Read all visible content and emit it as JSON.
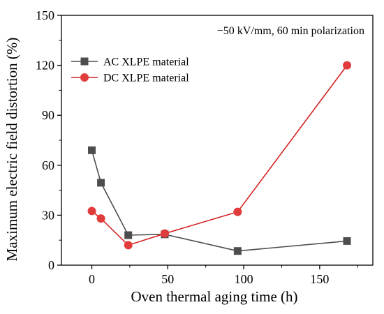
{
  "chart_data": {
    "type": "line",
    "title": "",
    "annotation": "−50 kV/mm, 60 min polarization",
    "xlabel": "Oven thermal aging time (h)",
    "ylabel": "Maximum electric field distortion (%)",
    "xlim": [
      -20,
      185
    ],
    "ylim": [
      0,
      150
    ],
    "xticks": [
      0,
      50,
      100,
      150
    ],
    "yticks": [
      0,
      30,
      60,
      90,
      120,
      150
    ],
    "grid": false,
    "legend_position": "top-left",
    "series": [
      {
        "name": "AC XLPE material",
        "color": "#4d4d4d",
        "marker": "square",
        "x": [
          0,
          6,
          24,
          48,
          96,
          168
        ],
        "y": [
          69,
          49.5,
          18,
          18.5,
          8.5,
          14.5
        ]
      },
      {
        "name": "DC XLPE material",
        "color": "#e03c3c",
        "line_color": "#d42020",
        "marker": "circle",
        "x": [
          0,
          6,
          24,
          48,
          96,
          168
        ],
        "y": [
          32.5,
          28,
          12,
          19,
          32,
          120
        ]
      }
    ]
  }
}
